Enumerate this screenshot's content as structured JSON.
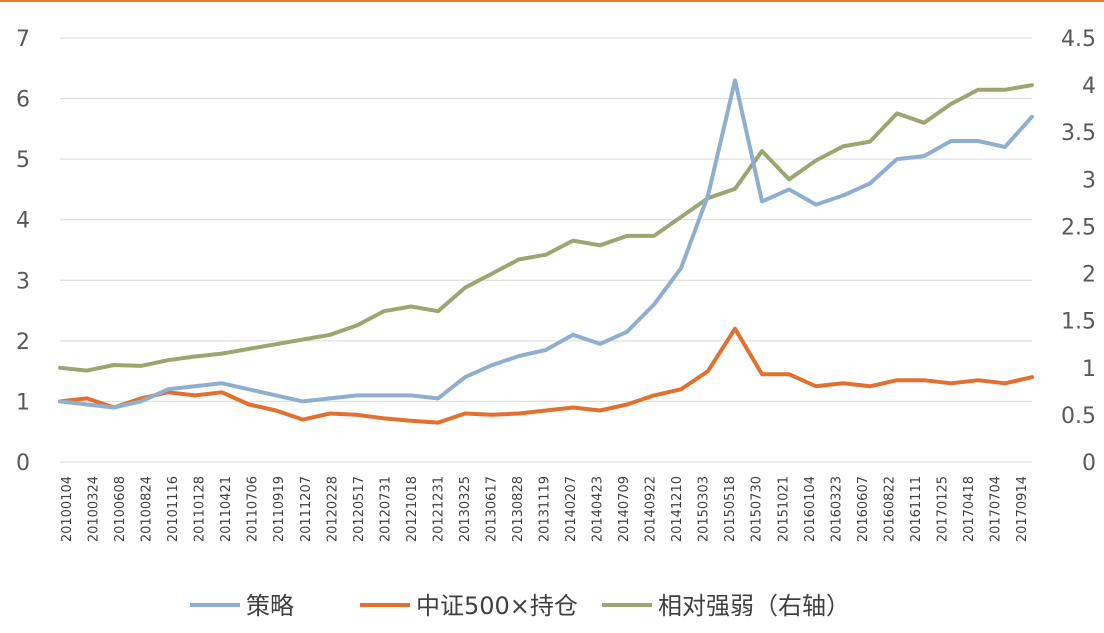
{
  "colors": {
    "strategy": "#8FAFD1",
    "csi500": "#E2702E",
    "relative": "#9BA771",
    "grid": "#D9D9D9",
    "accent": "#ED7D31"
  },
  "chart_data": {
    "type": "line",
    "x": [
      "20100104",
      "20100324",
      "20100608",
      "20100824",
      "20101116",
      "20110128",
      "20110421",
      "20110706",
      "20110919",
      "20111207",
      "20120228",
      "20120517",
      "20120731",
      "20121018",
      "20121231",
      "20130325",
      "20130617",
      "20130828",
      "20131119",
      "20140207",
      "20140423",
      "20140709",
      "20140922",
      "20141210",
      "20150303",
      "20150518",
      "20150730",
      "20151021",
      "20160104",
      "20160323",
      "20160607",
      "20160822",
      "20161111",
      "20170125",
      "20170418",
      "20170704",
      "20170914"
    ],
    "y_left": {
      "ylim": [
        0,
        7
      ],
      "ticks": [
        "0",
        "1",
        "2",
        "3",
        "4",
        "5",
        "6",
        "7"
      ]
    },
    "y_right": {
      "ylim": [
        0,
        4.5
      ],
      "ticks": [
        "0",
        "0.5",
        "1",
        "1.5",
        "2",
        "2.5",
        "3",
        "3.5",
        "4",
        "4.5"
      ]
    },
    "legend_position": "bottom",
    "grid": true,
    "series": [
      {
        "name": "策略",
        "axis": "left",
        "values": [
          1.0,
          0.95,
          0.9,
          1.0,
          1.2,
          1.25,
          1.3,
          1.2,
          1.1,
          1.0,
          1.05,
          1.1,
          1.1,
          1.1,
          1.05,
          1.4,
          1.6,
          1.75,
          1.85,
          2.1,
          1.95,
          2.15,
          2.6,
          3.2,
          4.4,
          6.3,
          4.3,
          4.5,
          4.25,
          4.4,
          4.6,
          5.0,
          5.05,
          5.3,
          5.3,
          5.2,
          5.7
        ]
      },
      {
        "name": "中证500×持仓",
        "axis": "left",
        "values": [
          1.0,
          1.05,
          0.9,
          1.05,
          1.15,
          1.1,
          1.15,
          0.95,
          0.85,
          0.7,
          0.8,
          0.78,
          0.72,
          0.68,
          0.65,
          0.8,
          0.78,
          0.8,
          0.85,
          0.9,
          0.85,
          0.95,
          1.1,
          1.2,
          1.5,
          2.2,
          1.45,
          1.45,
          1.25,
          1.3,
          1.25,
          1.35,
          1.35,
          1.3,
          1.35,
          1.3,
          1.4
        ]
      },
      {
        "name": "相对强弱（右轴）",
        "axis": "right",
        "values": [
          1.0,
          0.97,
          1.03,
          1.02,
          1.08,
          1.12,
          1.15,
          1.2,
          1.25,
          1.3,
          1.35,
          1.45,
          1.6,
          1.65,
          1.6,
          1.85,
          2.0,
          2.15,
          2.2,
          2.35,
          2.3,
          2.4,
          2.4,
          2.6,
          2.8,
          2.9,
          3.3,
          3.0,
          3.2,
          3.35,
          3.4,
          3.7,
          3.6,
          3.8,
          3.95,
          3.95,
          4.0
        ]
      }
    ]
  }
}
